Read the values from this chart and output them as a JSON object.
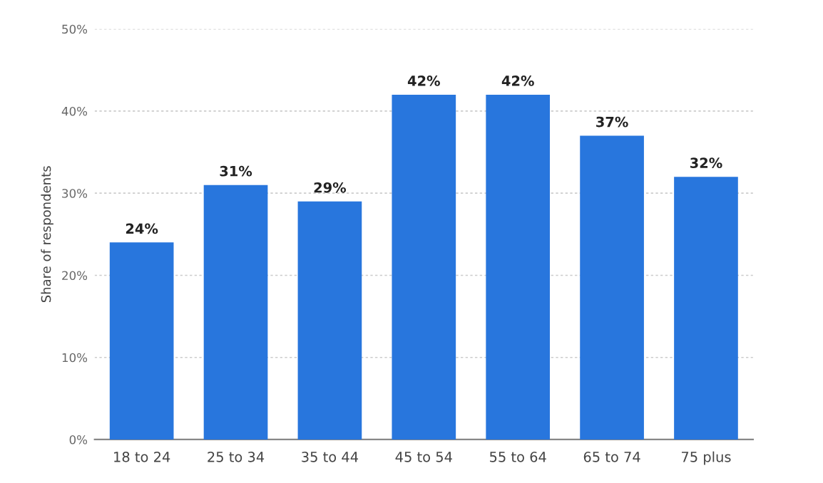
{
  "chart_data": {
    "type": "bar",
    "ylabel": "Share of respondents",
    "categories": [
      "18 to 24",
      "25 to 34",
      "35 to 44",
      "45 to 54",
      "55 to 64",
      "65 to 74",
      "75 plus"
    ],
    "values": [
      24,
      31,
      29,
      42,
      42,
      37,
      32
    ],
    "value_labels": [
      "24%",
      "31%",
      "29%",
      "42%",
      "42%",
      "37%",
      "32%"
    ],
    "color": "#2876dd",
    "ylim": [
      0,
      50
    ],
    "yticks": [
      {
        "value": 0,
        "label": "0%"
      },
      {
        "value": 10,
        "label": "10%"
      },
      {
        "value": 20,
        "label": "20%"
      },
      {
        "value": 30,
        "label": "30%"
      },
      {
        "value": 40,
        "label": "40%"
      },
      {
        "value": 50,
        "label": "50%"
      }
    ],
    "grid": "y"
  }
}
